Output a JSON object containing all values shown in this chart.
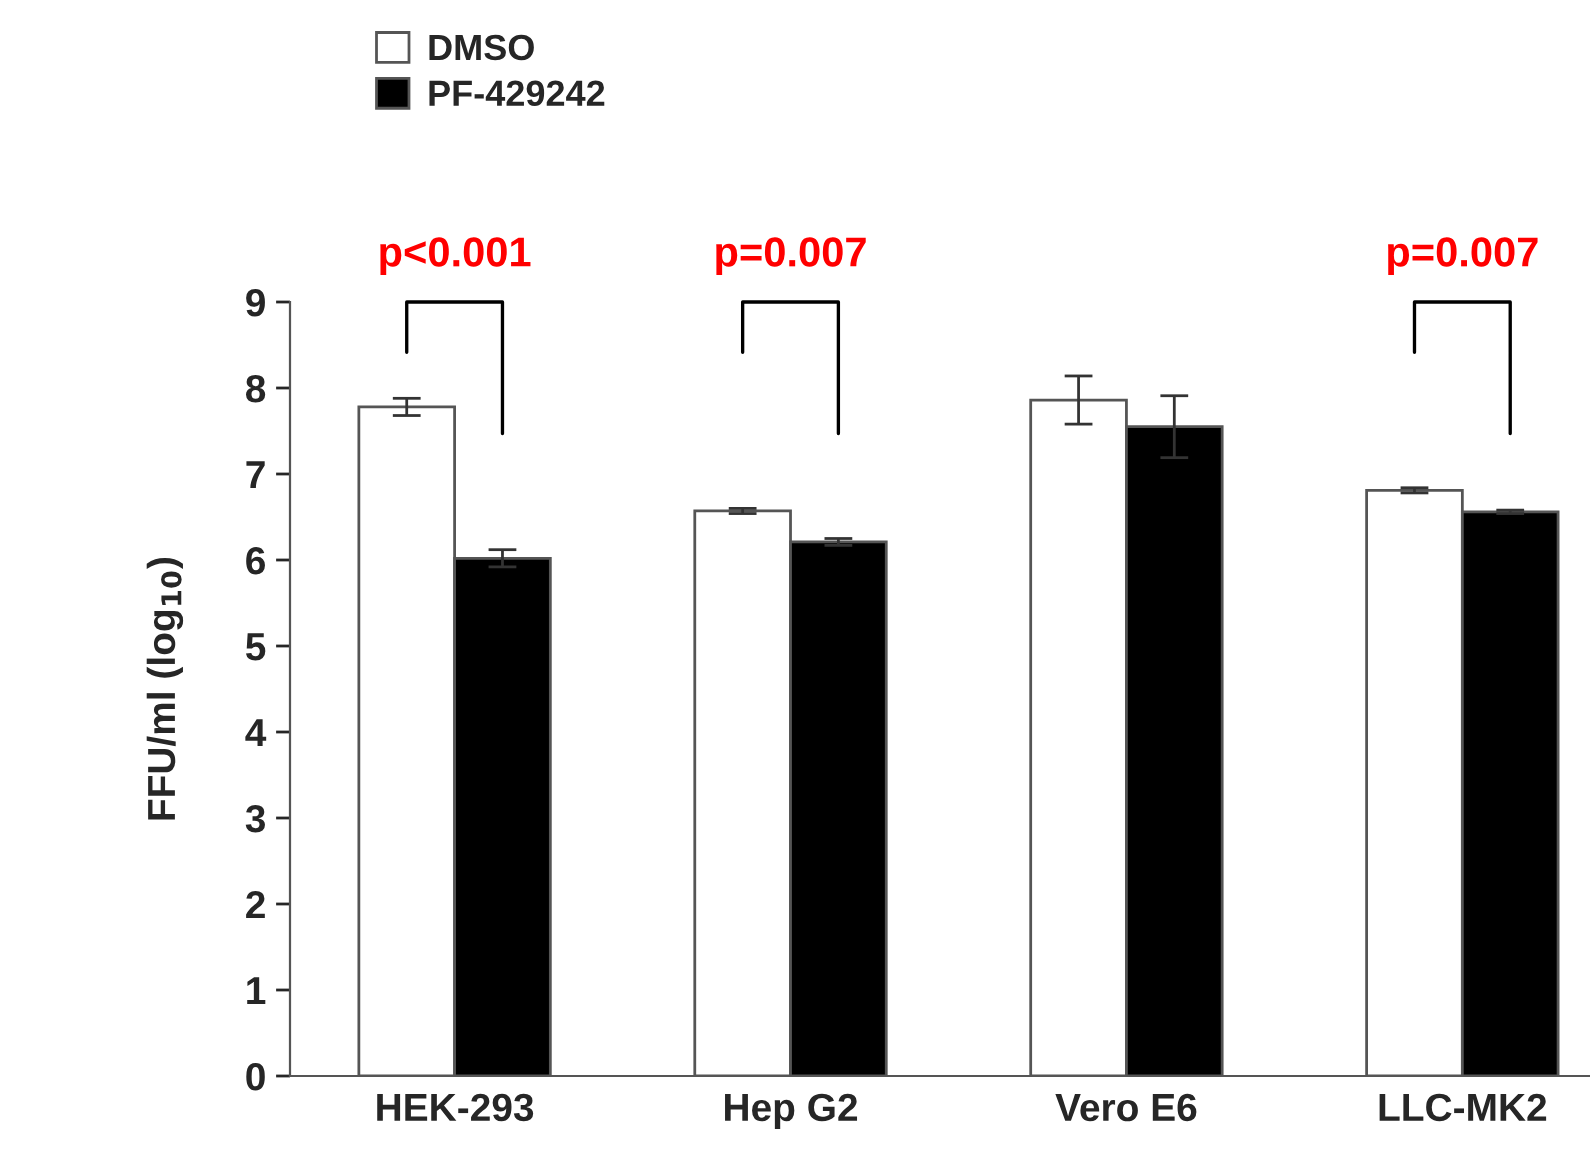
{
  "chart_data": {
    "type": "bar",
    "ylabel": "FFU/ml (log$_{10}$)",
    "categories": [
      "HEK-293",
      "Hep G2",
      "Vero E6",
      "LLC-MK2"
    ],
    "series": [
      {
        "name": "DMSO",
        "color": "#ffffff",
        "values": [
          7.78,
          6.57,
          7.86,
          6.81
        ],
        "errors": [
          0.1,
          0.03,
          0.28,
          0.03
        ]
      },
      {
        "name": "PF-429242",
        "color": "#000000",
        "values": [
          6.02,
          6.21,
          7.55,
          6.56
        ],
        "errors": [
          0.1,
          0.04,
          0.36,
          0.02
        ]
      }
    ],
    "ylim": [
      0,
      9
    ],
    "yticks": [
      0,
      1,
      2,
      3,
      4,
      5,
      6,
      7,
      8,
      9
    ],
    "grid": false,
    "legend": "top left",
    "annotations": [
      "p<0.001",
      "p=0.007",
      "p=0.007"
    ]
  }
}
